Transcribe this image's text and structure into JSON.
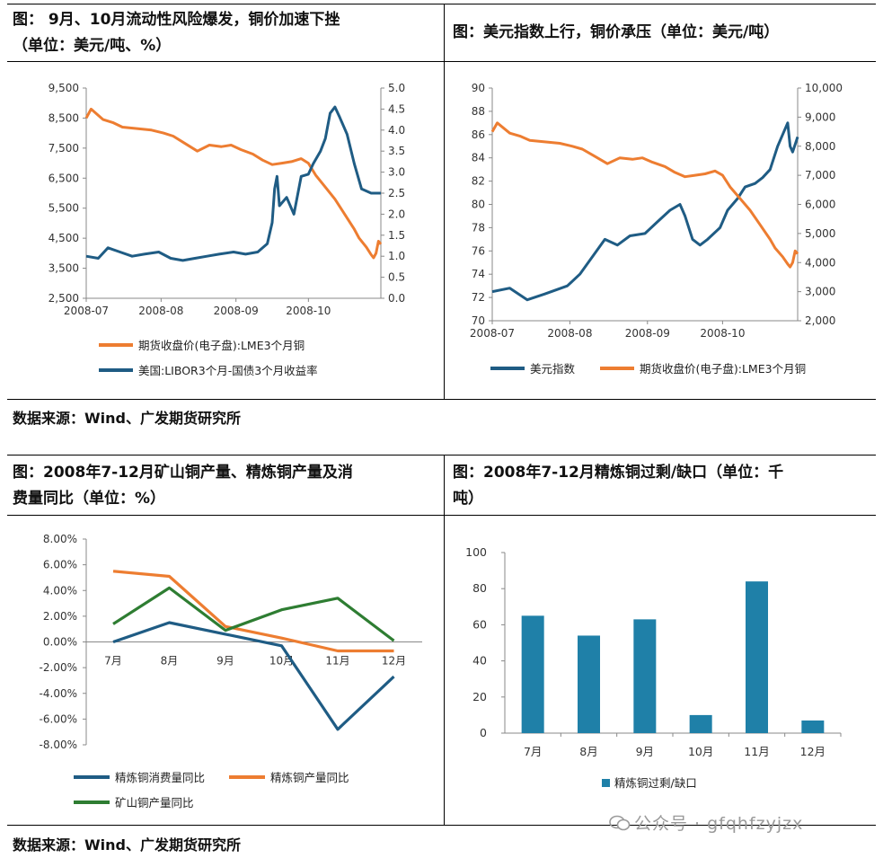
{
  "panels": [
    {
      "title_line1": "图： 9月、10月流动性风险爆发，铜价加速下挫",
      "title_line2": "（单位：美元/吨、%）"
    },
    {
      "title_line1": "图：美元指数上行，铜价承压（单位：美元/吨）",
      "title_line2": ""
    },
    {
      "title_line1": "图：2008年7-12月矿山铜产量、精炼铜产量及消",
      "title_line2": "费量同比（单位：%）"
    },
    {
      "title_line1": "图：2008年7-12月精炼铜过剩/缺口（单位：千",
      "title_line2": "吨）"
    }
  ],
  "source_top": "数据来源：Wind、广发期货研究所",
  "source_bottom": "数据来源：Wind、广发期货研究所",
  "watermark": "公众号 · gfqhfzyjzx",
  "colors": {
    "orange": "#ED7D31",
    "blue": "#1F5C84",
    "green": "#2E7D32",
    "teal": "#1F80A8"
  },
  "chart_data": [
    {
      "type": "line",
      "x_ticks": [
        "2008-07",
        "2008-08",
        "2008-09",
        "2008-10"
      ],
      "x_range": [
        "2008-07-01",
        "2008-10-31"
      ],
      "y_left": {
        "ticks": [
          "9,500",
          "8,500",
          "7,500",
          "6,500",
          "5,500",
          "4,500",
          "3,500",
          "2,500"
        ],
        "range": [
          2500,
          9500
        ]
      },
      "y_right": {
        "ticks": [
          "5.0",
          "4.5",
          "4.0",
          "3.5",
          "3.0",
          "2.5",
          "2.0",
          "1.5",
          "1.0",
          "0.5",
          "0.0"
        ],
        "range": [
          0,
          5
        ]
      },
      "series": [
        {
          "name": "期货收盘价(电子盘):LME3个月铜",
          "axis": "left",
          "color": "#ED7D31",
          "points": [
            [
              "2008-07-01",
              8500
            ],
            [
              "2008-07-03",
              8800
            ],
            [
              "2008-07-08",
              8450
            ],
            [
              "2008-07-12",
              8350
            ],
            [
              "2008-07-16",
              8200
            ],
            [
              "2008-07-22",
              8150
            ],
            [
              "2008-07-28",
              8100
            ],
            [
              "2008-08-02",
              8000
            ],
            [
              "2008-08-06",
              7900
            ],
            [
              "2008-08-11",
              7650
            ],
            [
              "2008-08-16",
              7400
            ],
            [
              "2008-08-21",
              7600
            ],
            [
              "2008-08-26",
              7550
            ],
            [
              "2008-08-30",
              7600
            ],
            [
              "2008-09-03",
              7450
            ],
            [
              "2008-09-08",
              7300
            ],
            [
              "2008-09-12",
              7100
            ],
            [
              "2008-09-16",
              6950
            ],
            [
              "2008-09-20",
              7000
            ],
            [
              "2008-09-24",
              7050
            ],
            [
              "2008-09-28",
              7150
            ],
            [
              "2008-10-01",
              7000
            ],
            [
              "2008-10-04",
              6600
            ],
            [
              "2008-10-08",
              6200
            ],
            [
              "2008-10-12",
              5800
            ],
            [
              "2008-10-16",
              5300
            ],
            [
              "2008-10-20",
              4800
            ],
            [
              "2008-10-22",
              4500
            ],
            [
              "2008-10-25",
              4200
            ],
            [
              "2008-10-27",
              3950
            ],
            [
              "2008-10-28",
              3850
            ],
            [
              "2008-10-29",
              4000
            ],
            [
              "2008-10-30",
              4400
            ],
            [
              "2008-10-31",
              4300
            ]
          ]
        },
        {
          "name": "美国:LIBOR3个月-国债3个月收益率",
          "axis": "right",
          "color": "#1F5C84",
          "points": [
            [
              "2008-07-01",
              1.0
            ],
            [
              "2008-07-06",
              0.95
            ],
            [
              "2008-07-10",
              1.2
            ],
            [
              "2008-07-15",
              1.1
            ],
            [
              "2008-07-20",
              1.0
            ],
            [
              "2008-07-25",
              1.05
            ],
            [
              "2008-07-31",
              1.1
            ],
            [
              "2008-08-05",
              0.95
            ],
            [
              "2008-08-10",
              0.9
            ],
            [
              "2008-08-15",
              0.95
            ],
            [
              "2008-08-20",
              1.0
            ],
            [
              "2008-08-25",
              1.05
            ],
            [
              "2008-08-31",
              1.1
            ],
            [
              "2008-09-05",
              1.05
            ],
            [
              "2008-09-10",
              1.1
            ],
            [
              "2008-09-14",
              1.3
            ],
            [
              "2008-09-16",
              1.8
            ],
            [
              "2008-09-17",
              2.6
            ],
            [
              "2008-09-18",
              2.9
            ],
            [
              "2008-09-19",
              2.2
            ],
            [
              "2008-09-22",
              2.4
            ],
            [
              "2008-09-25",
              2.0
            ],
            [
              "2008-09-28",
              2.9
            ],
            [
              "2008-10-01",
              2.95
            ],
            [
              "2008-10-03",
              3.2
            ],
            [
              "2008-10-06",
              3.5
            ],
            [
              "2008-10-08",
              3.8
            ],
            [
              "2008-10-10",
              4.4
            ],
            [
              "2008-10-12",
              4.55
            ],
            [
              "2008-10-14",
              4.3
            ],
            [
              "2008-10-17",
              3.9
            ],
            [
              "2008-10-20",
              3.2
            ],
            [
              "2008-10-23",
              2.6
            ],
            [
              "2008-10-27",
              2.5
            ],
            [
              "2008-10-31",
              2.5
            ]
          ]
        }
      ]
    },
    {
      "type": "line",
      "x_ticks": [
        "2008-07",
        "2008-08",
        "2008-09",
        "2008-10"
      ],
      "x_range": [
        "2008-07-01",
        "2008-10-31"
      ],
      "y_left": {
        "ticks": [
          "90",
          "88",
          "86",
          "84",
          "82",
          "80",
          "78",
          "76",
          "74",
          "72",
          "70"
        ],
        "range": [
          70,
          90
        ]
      },
      "y_right": {
        "ticks": [
          "10,000",
          "9,000",
          "8,000",
          "7,000",
          "6,000",
          "5,000",
          "4,000",
          "3,000",
          "2,000"
        ],
        "range": [
          2000,
          10000
        ]
      },
      "series": [
        {
          "name": "美元指数",
          "axis": "left",
          "color": "#1F5C84",
          "points": [
            [
              "2008-07-01",
              72.5
            ],
            [
              "2008-07-08",
              72.8
            ],
            [
              "2008-07-15",
              71.8
            ],
            [
              "2008-07-22",
              72.3
            ],
            [
              "2008-07-31",
              73.0
            ],
            [
              "2008-08-05",
              74.0
            ],
            [
              "2008-08-10",
              75.5
            ],
            [
              "2008-08-15",
              77.0
            ],
            [
              "2008-08-20",
              76.5
            ],
            [
              "2008-08-25",
              77.3
            ],
            [
              "2008-08-31",
              77.5
            ],
            [
              "2008-09-05",
              78.5
            ],
            [
              "2008-09-10",
              79.5
            ],
            [
              "2008-09-14",
              80.0
            ],
            [
              "2008-09-16",
              79.0
            ],
            [
              "2008-09-19",
              77.0
            ],
            [
              "2008-09-22",
              76.5
            ],
            [
              "2008-09-25",
              77.0
            ],
            [
              "2008-09-30",
              78.0
            ],
            [
              "2008-10-03",
              79.5
            ],
            [
              "2008-10-07",
              80.5
            ],
            [
              "2008-10-10",
              81.5
            ],
            [
              "2008-10-14",
              81.8
            ],
            [
              "2008-10-17",
              82.3
            ],
            [
              "2008-10-20",
              83.0
            ],
            [
              "2008-10-23",
              85.0
            ],
            [
              "2008-10-26",
              86.5
            ],
            [
              "2008-10-27",
              87.0
            ],
            [
              "2008-10-28",
              85.0
            ],
            [
              "2008-10-29",
              84.5
            ],
            [
              "2008-10-31",
              85.8
            ]
          ]
        },
        {
          "name": "期货收盘价(电子盘):LME3个月铜",
          "axis": "right",
          "color": "#ED7D31",
          "points": [
            [
              "2008-07-01",
              8500
            ],
            [
              "2008-07-03",
              8800
            ],
            [
              "2008-07-08",
              8450
            ],
            [
              "2008-07-12",
              8350
            ],
            [
              "2008-07-16",
              8200
            ],
            [
              "2008-07-22",
              8150
            ],
            [
              "2008-07-28",
              8100
            ],
            [
              "2008-08-02",
              8000
            ],
            [
              "2008-08-06",
              7900
            ],
            [
              "2008-08-11",
              7650
            ],
            [
              "2008-08-16",
              7400
            ],
            [
              "2008-08-21",
              7600
            ],
            [
              "2008-08-26",
              7550
            ],
            [
              "2008-08-30",
              7600
            ],
            [
              "2008-09-03",
              7450
            ],
            [
              "2008-09-08",
              7300
            ],
            [
              "2008-09-12",
              7100
            ],
            [
              "2008-09-16",
              6950
            ],
            [
              "2008-09-20",
              7000
            ],
            [
              "2008-09-24",
              7050
            ],
            [
              "2008-09-28",
              7150
            ],
            [
              "2008-10-01",
              7000
            ],
            [
              "2008-10-04",
              6600
            ],
            [
              "2008-10-08",
              6200
            ],
            [
              "2008-10-12",
              5800
            ],
            [
              "2008-10-16",
              5300
            ],
            [
              "2008-10-20",
              4800
            ],
            [
              "2008-10-22",
              4500
            ],
            [
              "2008-10-25",
              4200
            ],
            [
              "2008-10-27",
              3950
            ],
            [
              "2008-10-28",
              3850
            ],
            [
              "2008-10-29",
              4000
            ],
            [
              "2008-10-30",
              4400
            ],
            [
              "2008-10-31",
              4300
            ]
          ]
        }
      ]
    },
    {
      "type": "line",
      "categories": [
        "7月",
        "8月",
        "9月",
        "10月",
        "11月",
        "12月"
      ],
      "y_ticks": [
        "8.00%",
        "6.00%",
        "4.00%",
        "2.00%",
        "0.00%",
        "-2.00%",
        "-4.00%",
        "-6.00%",
        "-8.00%"
      ],
      "ylim": [
        -8,
        8
      ],
      "series": [
        {
          "name": "精炼铜消费量同比",
          "color": "#1F5C84",
          "values": [
            0.0,
            1.5,
            0.6,
            -0.3,
            -6.8,
            -2.7
          ]
        },
        {
          "name": "精炼铜产量同比",
          "color": "#ED7D31",
          "values": [
            5.5,
            5.1,
            1.2,
            0.3,
            -0.7,
            -0.7
          ]
        },
        {
          "name": "矿山铜产量同比",
          "color": "#2E7D32",
          "values": [
            1.4,
            4.2,
            0.9,
            2.5,
            3.4,
            0.1
          ]
        }
      ]
    },
    {
      "type": "bar",
      "categories": [
        "7月",
        "8月",
        "9月",
        "10月",
        "11月",
        "12月"
      ],
      "y_ticks": [
        "100",
        "80",
        "60",
        "40",
        "20",
        "0"
      ],
      "ylim": [
        0,
        100
      ],
      "series": [
        {
          "name": "精炼铜过剩/缺口",
          "color": "#1F80A8",
          "values": [
            65,
            54,
            63,
            10,
            84,
            7
          ]
        }
      ]
    }
  ]
}
